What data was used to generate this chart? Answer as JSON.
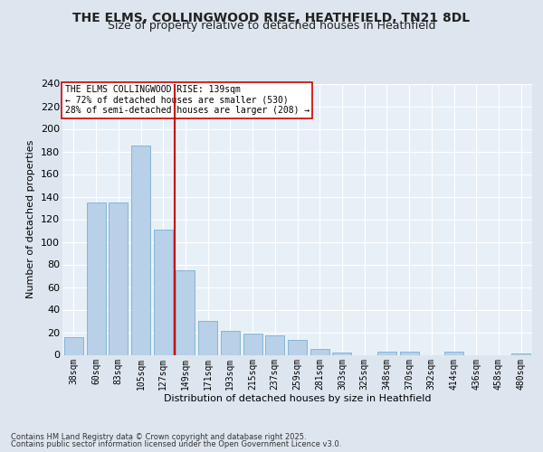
{
  "title_line1": "THE ELMS, COLLINGWOOD RISE, HEATHFIELD, TN21 8DL",
  "title_line2": "Size of property relative to detached houses in Heathfield",
  "categories": [
    "38sqm",
    "60sqm",
    "83sqm",
    "105sqm",
    "127sqm",
    "149sqm",
    "171sqm",
    "193sqm",
    "215sqm",
    "237sqm",
    "259sqm",
    "281sqm",
    "303sqm",
    "325sqm",
    "348sqm",
    "370sqm",
    "392sqm",
    "414sqm",
    "436sqm",
    "458sqm",
    "480sqm"
  ],
  "values": [
    16,
    135,
    135,
    185,
    111,
    75,
    30,
    21,
    19,
    17,
    13,
    5,
    2,
    0,
    3,
    3,
    0,
    3,
    0,
    0,
    1
  ],
  "bar_color": "#b8d0e8",
  "bar_edge_color": "#7aaed0",
  "vline_color": "#cc0000",
  "xlabel": "Distribution of detached houses by size in Heathfield",
  "ylabel": "Number of detached properties",
  "ylim": [
    0,
    240
  ],
  "yticks": [
    0,
    20,
    40,
    60,
    80,
    100,
    120,
    140,
    160,
    180,
    200,
    220,
    240
  ],
  "annotation_title": "THE ELMS COLLINGWOOD RISE: 139sqm",
  "annotation_line1": "← 72% of detached houses are smaller (530)",
  "annotation_line2": "28% of semi-detached houses are larger (208) →",
  "footnote1": "Contains HM Land Registry data © Crown copyright and database right 2025.",
  "footnote2": "Contains public sector information licensed under the Open Government Licence v3.0.",
  "bg_color": "#dde6ef",
  "plot_bg_color": "#e8f0f7",
  "grid_color": "#ffffff",
  "title1_fontsize": 10,
  "title2_fontsize": 9,
  "ylabel_fontsize": 8,
  "xlabel_fontsize": 8,
  "ytick_fontsize": 8,
  "xtick_fontsize": 7,
  "footnote_fontsize": 6,
  "annot_fontsize": 7
}
